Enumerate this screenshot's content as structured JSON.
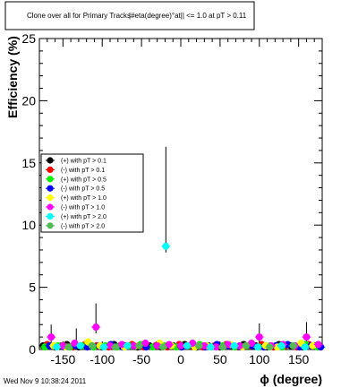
{
  "title": "Clone  over all for Primary Tracks",
  "title_extra": "|#eta(degree)°at|| <= 1.0 at pT > 0.11",
  "timestamp": "Wed Nov  9 10:38:24 2011",
  "chart_data": {
    "type": "scatter",
    "xlabel": "ϕ (degree)",
    "ylabel": "Efficiency (%)",
    "xlim": [
      -180,
      180
    ],
    "ylim": [
      0,
      25
    ],
    "x_ticks": [
      -150,
      -100,
      -50,
      0,
      50,
      100,
      150
    ],
    "y_ticks": [
      0,
      5,
      10,
      15,
      20,
      25
    ],
    "legend_position": "middle-left",
    "series": [
      {
        "name": "(+) with pT > 0.1",
        "color": "#000000",
        "points": [
          [
            -175,
            0.3
          ],
          [
            -160,
            0.2
          ],
          [
            -145,
            0.4
          ],
          [
            -130,
            0.2
          ],
          [
            -115,
            0.3
          ],
          [
            -100,
            0.2
          ],
          [
            -85,
            0.4
          ],
          [
            -70,
            0.3
          ],
          [
            -55,
            0.2
          ],
          [
            -40,
            0.3
          ],
          [
            -25,
            0.2
          ],
          [
            -10,
            0.3
          ],
          [
            5,
            0.4
          ],
          [
            20,
            0.2
          ],
          [
            35,
            0.3
          ],
          [
            50,
            0.2
          ],
          [
            65,
            0.3
          ],
          [
            80,
            0.4
          ],
          [
            95,
            0.3
          ],
          [
            110,
            0.2
          ],
          [
            125,
            0.4
          ],
          [
            140,
            0.3
          ],
          [
            155,
            0.2
          ],
          [
            170,
            0.3
          ]
        ]
      },
      {
        "name": "(-) with pT > 0.1",
        "color": "#ff0000",
        "points": [
          [
            -170,
            0.4
          ],
          [
            -152,
            0.3
          ],
          [
            -137,
            0.2
          ],
          [
            -122,
            0.4
          ],
          [
            -107,
            0.3
          ],
          [
            -92,
            0.2
          ],
          [
            -77,
            0.3
          ],
          [
            -62,
            0.4
          ],
          [
            -47,
            0.2
          ],
          [
            -32,
            0.3
          ],
          [
            -17,
            0.2
          ],
          [
            -2,
            0.4
          ],
          [
            13,
            0.3
          ],
          [
            28,
            0.2
          ],
          [
            43,
            0.3
          ],
          [
            58,
            0.4
          ],
          [
            73,
            0.2
          ],
          [
            88,
            0.3
          ],
          [
            103,
            0.4
          ],
          [
            118,
            0.2
          ],
          [
            133,
            0.3
          ],
          [
            148,
            0.2
          ],
          [
            163,
            0.4
          ],
          [
            176,
            0.3
          ]
        ]
      },
      {
        "name": "(+) with pT > 0.5",
        "color": "#00ee00",
        "points": [
          [
            -173,
            0.2
          ],
          [
            -156,
            0.3
          ],
          [
            -141,
            0.2
          ],
          [
            -126,
            0.3
          ],
          [
            -111,
            0.2
          ],
          [
            -96,
            0.3
          ],
          [
            -81,
            0.2
          ],
          [
            -66,
            0.3
          ],
          [
            -51,
            0.4
          ],
          [
            -36,
            0.2
          ],
          [
            -21,
            0.3
          ],
          [
            -6,
            0.2
          ],
          [
            9,
            0.3
          ],
          [
            24,
            0.4
          ],
          [
            39,
            0.2
          ],
          [
            54,
            0.3
          ],
          [
            69,
            0.2
          ],
          [
            84,
            0.3
          ],
          [
            99,
            0.2
          ],
          [
            114,
            0.3
          ],
          [
            129,
            0.2
          ],
          [
            144,
            0.3
          ],
          [
            159,
            0.4
          ],
          [
            174,
            0.2
          ]
        ]
      },
      {
        "name": "(-) with pT > 0.5",
        "color": "#0000ff",
        "points": [
          [
            -167,
            0.3
          ],
          [
            -149,
            0.2
          ],
          [
            -134,
            0.3
          ],
          [
            -119,
            0.2
          ],
          [
            -104,
            0.3
          ],
          [
            -89,
            0.4
          ],
          [
            -74,
            0.2
          ],
          [
            -59,
            0.3
          ],
          [
            -44,
            0.2
          ],
          [
            -29,
            0.4
          ],
          [
            -14,
            0.3
          ],
          [
            1,
            0.2
          ],
          [
            16,
            0.3
          ],
          [
            31,
            0.2
          ],
          [
            46,
            0.4
          ],
          [
            61,
            0.3
          ],
          [
            76,
            0.2
          ],
          [
            91,
            0.3
          ],
          [
            106,
            0.2
          ],
          [
            121,
            0.3
          ],
          [
            136,
            0.4
          ],
          [
            151,
            0.2
          ],
          [
            166,
            0.3
          ],
          [
            178,
            0.2
          ]
        ]
      },
      {
        "name": "(+) with pT > 1.0",
        "color": "#ffff00",
        "points": [
          [
            -162,
            0.3
          ],
          [
            -147,
            0.2
          ],
          [
            -118,
            0.6
          ],
          [
            -103,
            0.3
          ],
          [
            -72,
            0.2
          ],
          [
            -57,
            0.3
          ],
          [
            -27,
            0.5
          ],
          [
            -12,
            0.3
          ],
          [
            18,
            0.2
          ],
          [
            33,
            0.3
          ],
          [
            63,
            0.4
          ],
          [
            78,
            0.2
          ],
          [
            108,
            0.3
          ],
          [
            123,
            0.2
          ],
          [
            153,
            0.5
          ],
          [
            168,
            0.3
          ]
        ]
      },
      {
        "name": "(-) with pT > 1.0",
        "color": "#ff00ff",
        "points": [
          [
            -165,
            1.0
          ],
          [
            -150,
            0.3
          ],
          [
            -135,
            0.5
          ],
          [
            -108,
            1.8
          ],
          [
            -90,
            0.3
          ],
          [
            -75,
            0.4
          ],
          [
            -60,
            0.3
          ],
          [
            -45,
            0.5
          ],
          [
            -30,
            0.3
          ],
          [
            -15,
            0.4
          ],
          [
            0,
            0.3
          ],
          [
            15,
            0.5
          ],
          [
            30,
            0.3
          ],
          [
            45,
            0.2
          ],
          [
            60,
            0.4
          ],
          [
            75,
            0.3
          ],
          [
            90,
            0.5
          ],
          [
            100,
            1.0
          ],
          [
            115,
            0.3
          ],
          [
            130,
            0.4
          ],
          [
            145,
            0.3
          ],
          [
            160,
            1.0
          ],
          [
            175,
            0.4
          ]
        ]
      },
      {
        "name": "(+) with pT > 2.0",
        "color": "#00ffff",
        "points": [
          [
            -158,
            0.2
          ],
          [
            -128,
            0.3
          ],
          [
            -98,
            0.2
          ],
          [
            -68,
            0.3
          ],
          [
            -19,
            8.3
          ],
          [
            8,
            0.3
          ],
          [
            38,
            0.2
          ],
          [
            68,
            0.3
          ],
          [
            98,
            0.2
          ],
          [
            128,
            0.3
          ],
          [
            158,
            0.2
          ]
        ]
      },
      {
        "name": "(-) with pT > 2.0",
        "color": "#55bb55",
        "points": [
          [
            -143,
            0.2
          ],
          [
            -113,
            0.3
          ],
          [
            -83,
            0.2
          ],
          [
            -53,
            0.3
          ],
          [
            -23,
            0.2
          ],
          [
            23,
            0.3
          ],
          [
            53,
            0.2
          ],
          [
            83,
            0.3
          ],
          [
            113,
            0.2
          ],
          [
            143,
            0.3
          ]
        ]
      }
    ],
    "error_bars": [
      {
        "x": -165,
        "y": 1.0,
        "up": 2.0
      },
      {
        "x": -133,
        "y": 0.5,
        "up": 1.7
      },
      {
        "x": -108,
        "y": 1.8,
        "up": 3.7
      },
      {
        "x": -19,
        "y": 8.3,
        "up": 16.3
      },
      {
        "x": 100,
        "y": 1.0,
        "up": 2.1
      },
      {
        "x": 160,
        "y": 1.0,
        "up": 2.2
      }
    ]
  }
}
